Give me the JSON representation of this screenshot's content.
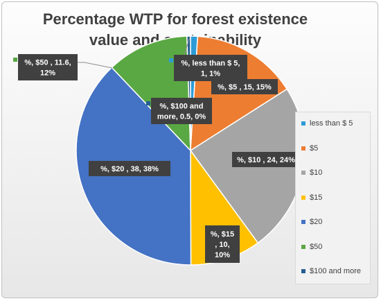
{
  "chart_data": {
    "type": "pie",
    "title": "Percentage WTP for forest existence value and sustainability",
    "title_lines": [
      "Percentage WTP for forest existence",
      "value and sustainability"
    ],
    "categories": [
      "less than $ 5",
      "$5",
      "$10",
      "$15",
      "$20",
      "$50",
      "$100 and more"
    ],
    "values": [
      1,
      15,
      24,
      10,
      38,
      11.6,
      0.5
    ],
    "percents": [
      "1%",
      "15%",
      "24%",
      "10%",
      "38%",
      "12%",
      "0%"
    ],
    "colors": [
      "#2e9bd7",
      "#ed7d31",
      "#a5a5a5",
      "#ffc000",
      "#4472c4",
      "#5aa843",
      "#255e91"
    ],
    "legend_position": "right",
    "data_labels": [
      [
        "%, less than $ 5,",
        "1, 1%"
      ],
      [
        "%, $5 , 15, 15%"
      ],
      [
        "%, $10 , 24, 24%"
      ],
      [
        "%, $15",
        ", 10,",
        "10%"
      ],
      [
        "%, $20 , 38, 38%"
      ],
      [
        "%, $50 , 11.6,",
        "12%"
      ],
      [
        "%, $100 and",
        "more, 0.5, 0%"
      ]
    ]
  }
}
